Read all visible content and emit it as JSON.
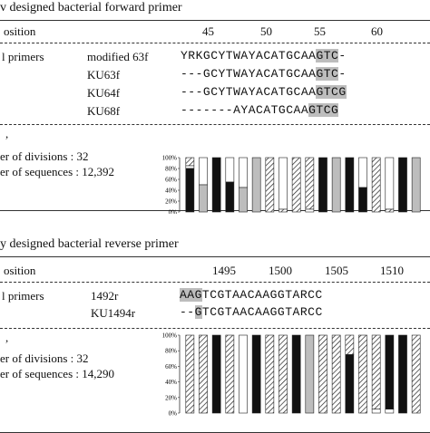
{
  "section1": {
    "title": "v designed bacterial forward primer",
    "position_label": "osition",
    "numbers": [
      "45",
      "50",
      "55",
      "60"
    ],
    "primers_label": "l primers",
    "rows": [
      {
        "name": "modified 63f",
        "prefix": "YRKGCYTWAYACATGCAA",
        "highlight": "GTC",
        "suffix": "-"
      },
      {
        "name": "KU63f",
        "prefix": "---GCYTWAYACATGCAA",
        "highlight": "GTC",
        "suffix": "-"
      },
      {
        "name": "KU64f",
        "prefix": "---GCYTWAYACATGCAA",
        "highlight": "GTCG",
        "suffix": ""
      },
      {
        "name": "KU68f",
        "prefix": "-------AYACATGCAA",
        "highlight": "GTCG",
        "suffix": ""
      }
    ],
    "left_mark": ",",
    "divisions": "er of divisions : 32",
    "sequences": "er of sequences : 12,392",
    "chart_data": {
      "type": "bar",
      "stacked": true,
      "yticks": [
        "100%",
        "80%",
        "60%",
        "40%",
        "20%",
        "0%"
      ],
      "bars": [
        [
          {
            "p": "hatch",
            "v": 0.15
          },
          {
            "p": "white",
            "v": 0.05
          },
          {
            "p": "black",
            "v": 0.8
          }
        ],
        [
          {
            "p": "white",
            "v": 0.5
          },
          {
            "p": "gray",
            "v": 0.5
          }
        ],
        [
          {
            "p": "black",
            "v": 1.0
          }
        ],
        [
          {
            "p": "white",
            "v": 0.45
          },
          {
            "p": "black",
            "v": 0.55
          }
        ],
        [
          {
            "p": "white",
            "v": 0.55
          },
          {
            "p": "gray",
            "v": 0.45
          }
        ],
        [
          {
            "p": "gray",
            "v": 1.0
          }
        ],
        [
          {
            "p": "hatch",
            "v": 1.0
          }
        ],
        [
          {
            "p": "white",
            "v": 0.95
          },
          {
            "p": "hatch",
            "v": 0.05
          }
        ],
        [
          {
            "p": "hatch",
            "v": 1.0
          }
        ],
        [
          {
            "p": "hatch",
            "v": 0.95
          },
          {
            "p": "white",
            "v": 0.05
          }
        ],
        [
          {
            "p": "black",
            "v": 1.0
          }
        ],
        [
          {
            "p": "gray",
            "v": 1.0
          }
        ],
        [
          {
            "p": "black",
            "v": 1.0
          }
        ],
        [
          {
            "p": "white",
            "v": 0.55
          },
          {
            "p": "black",
            "v": 0.45
          }
        ],
        [
          {
            "p": "hatch",
            "v": 1.0
          }
        ],
        [
          {
            "p": "white",
            "v": 0.95
          },
          {
            "p": "hatch",
            "v": 0.05
          }
        ],
        [
          {
            "p": "black",
            "v": 1.0
          }
        ],
        [
          {
            "p": "gray",
            "v": 1.0
          }
        ]
      ]
    }
  },
  "section2": {
    "title": "y designed bacterial reverse primer",
    "position_label": "osition",
    "numbers": [
      "1495",
      "1500",
      "1505",
      "1510"
    ],
    "primers_label": "l primers",
    "rows": [
      {
        "name": "1492r",
        "prefix": "",
        "highlight": "AAG",
        "suffix": "TCGTAACAAGGTARCC"
      },
      {
        "name": "KU1494r",
        "prefix": "--",
        "highlight": "G",
        "suffix": "TCGTAACAAGGTARCC"
      }
    ],
    "left_mark": ",",
    "divisions": "er of divisions : 32",
    "sequences": "er of sequences : 14,290",
    "chart_data": {
      "type": "bar",
      "stacked": true,
      "yticks": [
        "100%",
        "80%",
        "60%",
        "40%",
        "20%",
        "0%"
      ],
      "bars": [
        [
          {
            "p": "hatch",
            "v": 1.0
          }
        ],
        [
          {
            "p": "hatch",
            "v": 1.0
          }
        ],
        [
          {
            "p": "black",
            "v": 1.0
          }
        ],
        [
          {
            "p": "hatch",
            "v": 1.0
          }
        ],
        [
          {
            "p": "white",
            "v": 1.0
          }
        ],
        [
          {
            "p": "black",
            "v": 1.0
          }
        ],
        [
          {
            "p": "hatch",
            "v": 1.0
          }
        ],
        [
          {
            "p": "hatch",
            "v": 1.0
          }
        ],
        [
          {
            "p": "black",
            "v": 1.0
          }
        ],
        [
          {
            "p": "gray",
            "v": 1.0
          }
        ],
        [
          {
            "p": "hatch",
            "v": 1.0
          }
        ],
        [
          {
            "p": "hatch",
            "v": 1.0
          }
        ],
        [
          {
            "p": "hatch",
            "v": 0.25
          },
          {
            "p": "black",
            "v": 0.75
          }
        ],
        [
          {
            "p": "hatch",
            "v": 1.0
          }
        ],
        [
          {
            "p": "hatch",
            "v": 0.95
          },
          {
            "p": "white",
            "v": 0.05
          }
        ],
        [
          {
            "p": "black",
            "v": 0.95
          },
          {
            "p": "white",
            "v": 0.05
          }
        ],
        [
          {
            "p": "black",
            "v": 1.0
          }
        ],
        [
          {
            "p": "hatch",
            "v": 1.0
          }
        ]
      ]
    }
  },
  "colors": {
    "gray": "#bdbdbd",
    "black": "#111111",
    "white": "#ffffff"
  }
}
